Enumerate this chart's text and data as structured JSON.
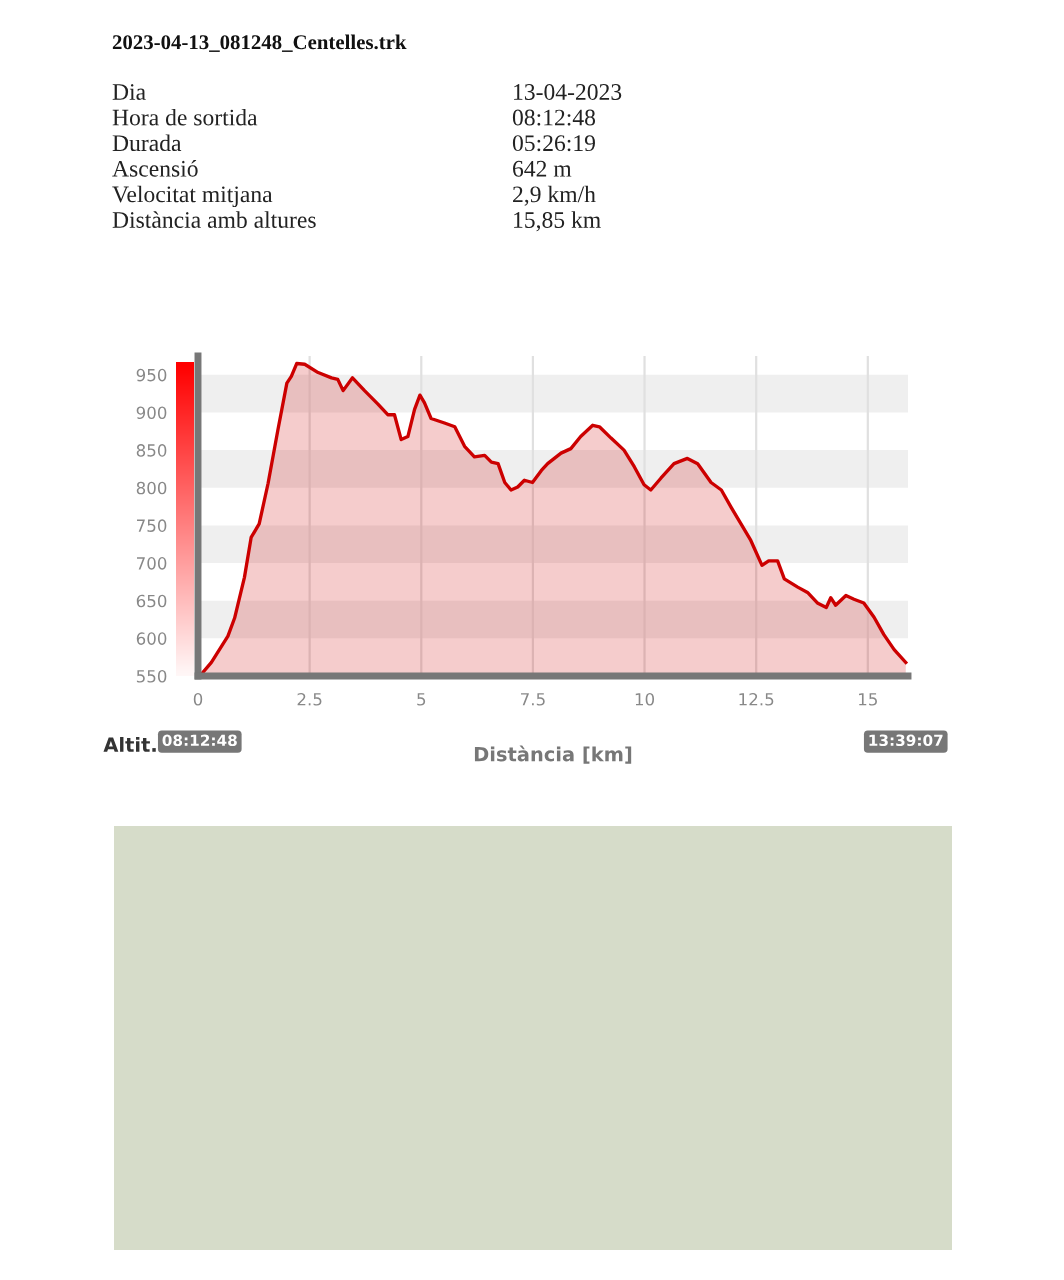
{
  "chart_data": {
    "type": "area",
    "title": "2023-04-13_081248_Centelles.trk",
    "xlabel": "Distància [km]",
    "ylabel": "Altit.",
    "color": "#cc0000",
    "x": [
      0.04,
      0.3,
      0.67,
      0.82,
      1.04,
      1.19,
      1.37,
      1.57,
      1.79,
      1.99,
      2.09,
      2.21,
      2.39,
      2.69,
      2.99,
      3.13,
      3.25,
      3.46,
      3.73,
      4.03,
      4.25,
      4.4,
      4.55,
      4.7,
      4.85,
      4.97,
      5.07,
      5.22,
      5.52,
      5.75,
      5.97,
      6.19,
      6.42,
      6.57,
      6.72,
      6.87,
      7.01,
      7.16,
      7.31,
      7.49,
      7.69,
      7.83,
      8.13,
      8.35,
      8.57,
      8.84,
      8.99,
      9.25,
      9.54,
      9.77,
      9.99,
      10.14,
      10.37,
      10.66,
      10.96,
      11.19,
      11.49,
      11.72,
      11.94,
      12.16,
      12.38,
      12.63,
      12.78,
      12.98,
      13.13,
      13.43,
      13.65,
      13.87,
      14.07,
      14.17,
      14.28,
      14.51,
      14.69,
      14.91,
      15.14,
      15.36,
      15.59,
      15.85
    ],
    "values": [
      550,
      568,
      603,
      627,
      681,
      734,
      752,
      806,
      877,
      939,
      948,
      965,
      964,
      953,
      946,
      944,
      929,
      946,
      929,
      911,
      897,
      897,
      864,
      868,
      904,
      923,
      913,
      892,
      886,
      881,
      855,
      841,
      843,
      834,
      832,
      807,
      797,
      801,
      810,
      807,
      823,
      832,
      846,
      852,
      868,
      883,
      881,
      866,
      850,
      828,
      804,
      797,
      813,
      832,
      839,
      832,
      807,
      797,
      774,
      752,
      730,
      697,
      703,
      703,
      679,
      668,
      661,
      647,
      641,
      654,
      644,
      657,
      652,
      647,
      628,
      605,
      585,
      568
    ],
    "xlim": [
      0,
      15.9
    ],
    "ylim": [
      550,
      975
    ],
    "xticks": [
      0,
      2.5,
      5,
      7.5,
      10,
      12.5,
      15
    ],
    "yticks": [
      550,
      600,
      650,
      700,
      750,
      800,
      850,
      900,
      950
    ],
    "grid": true,
    "annotations": [
      "Dia",
      "13-04-2023",
      "Hora de sortida",
      "08:12:48",
      "Durada",
      "05:26:19",
      "Ascensió",
      "642 m",
      "Velocitat mitjana",
      "2,9 km/h",
      "Distància amb altures",
      "15,85 km",
      "08:12:48",
      "13:39:07"
    ]
  }
}
